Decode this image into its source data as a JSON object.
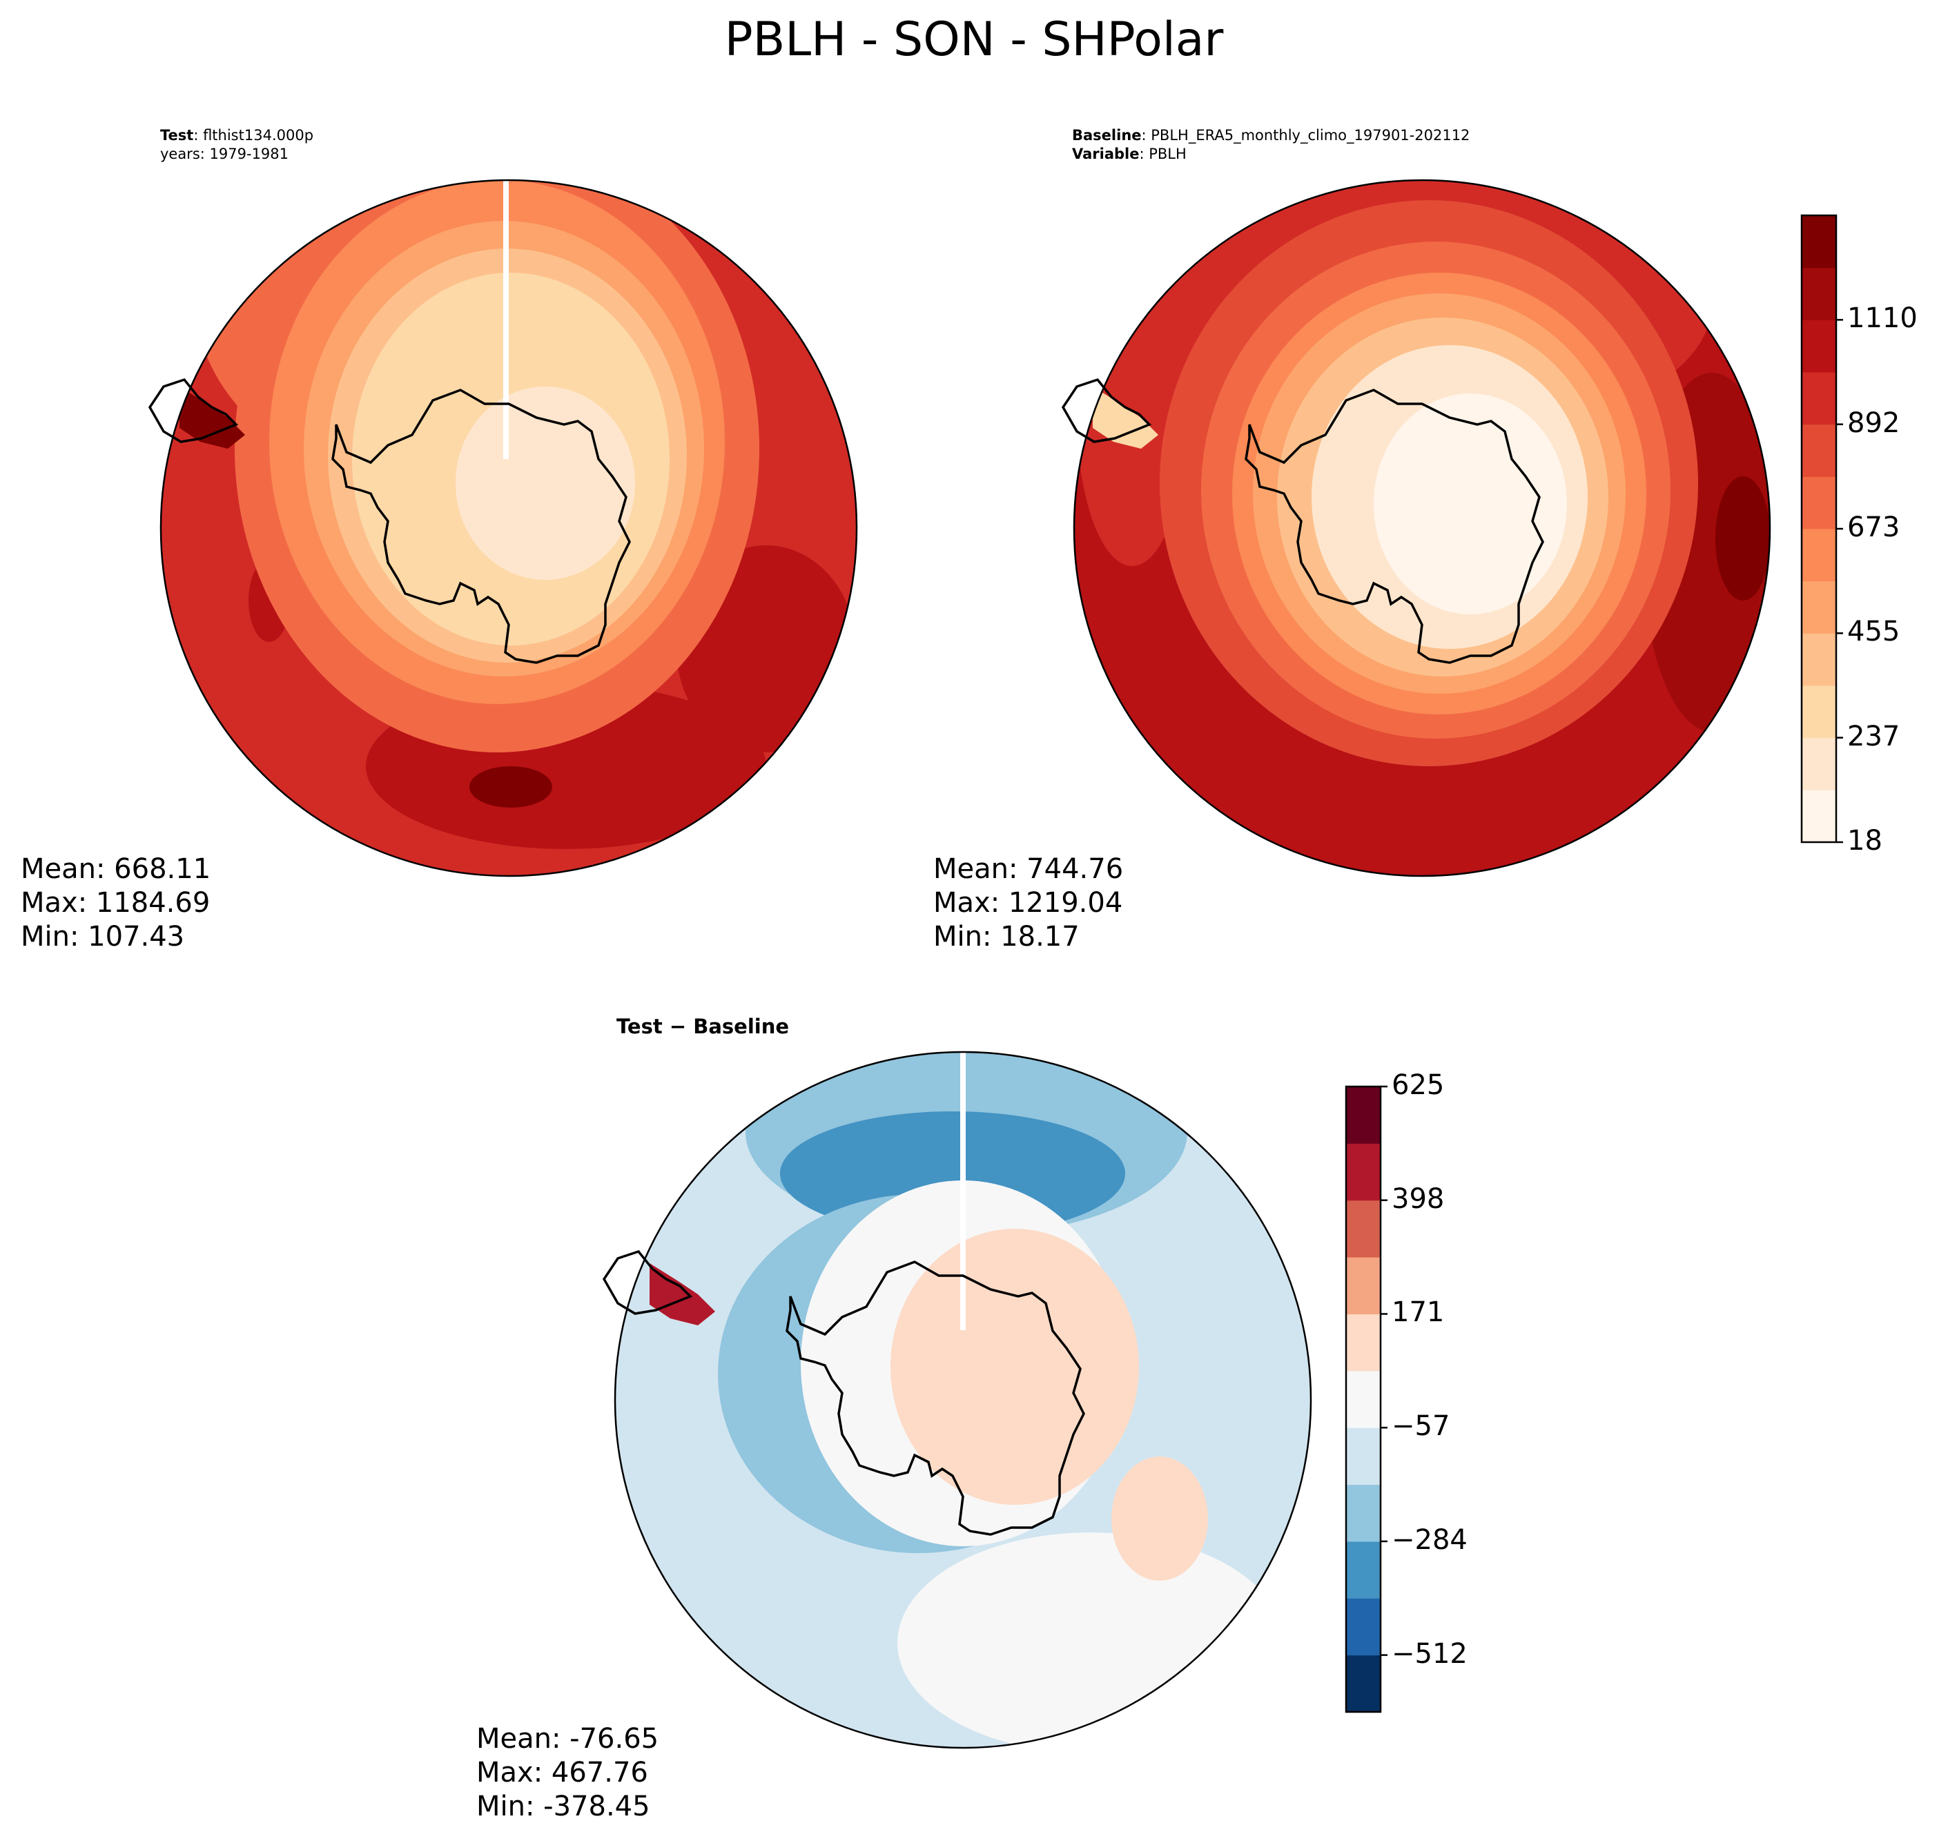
{
  "title": "PBLH - SON - SHPolar",
  "panels": {
    "test": {
      "label_bold": "Test",
      "label_text": ": flthist134.000p",
      "line2": "years: 1979-1981",
      "mean": "Mean: 668.11",
      "max": "Max: 1184.69",
      "min": "Min: 107.43"
    },
    "baseline": {
      "label_bold": "Baseline",
      "label_text": ": PBLH_ERA5_monthly_climo_197901-202112",
      "line2_bold": "Variable",
      "line2_text": ": PBLH",
      "mean": "Mean: 744.76",
      "max": "Max: 1219.04",
      "min": "Min: 18.17"
    },
    "diff": {
      "title": "Test − Baseline",
      "mean": "Mean: -76.65",
      "max": "Max: 467.76",
      "min": "Min: -378.45"
    }
  },
  "colorbar_main": {
    "ticks": [
      "18",
      "237",
      "455",
      "673",
      "892",
      "1110"
    ],
    "colors": [
      "#fff5eb",
      "#fee6ce",
      "#fdd9a8",
      "#fdc08c",
      "#fca46c",
      "#fb8a56",
      "#f26a45",
      "#e34b35",
      "#d22b26",
      "#b81215",
      "#a10a0a",
      "#7f0000"
    ]
  },
  "colorbar_diff": {
    "ticks": [
      "625",
      "398",
      "171",
      "−57",
      "−284",
      "−512"
    ],
    "colors": [
      "#053061",
      "#2166ac",
      "#4393c3",
      "#92c5de",
      "#d1e5f0",
      "#f7f7f7",
      "#fddbc7",
      "#f4a582",
      "#d6604d",
      "#b2182b",
      "#67001f"
    ]
  }
}
